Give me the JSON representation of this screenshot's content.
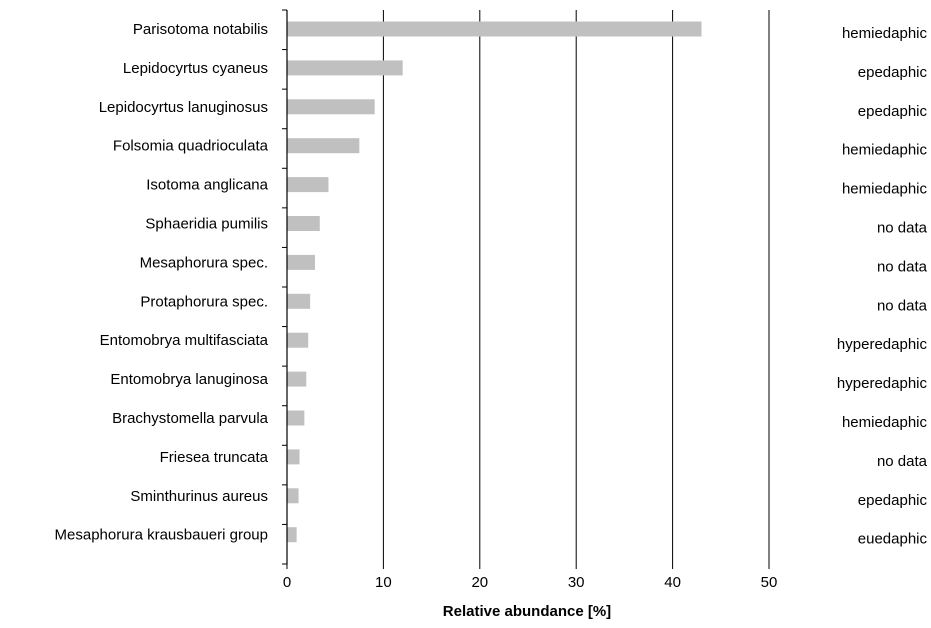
{
  "chart_data": {
    "type": "bar",
    "orientation": "horizontal",
    "categories": [
      "Parisotoma notabilis",
      "Lepidocyrtus cyaneus",
      "Lepidocyrtus lanuginosus",
      "Folsomia quadrioculata",
      "Isotoma anglicana",
      "Sphaeridia pumilis",
      "Mesaphorura spec.",
      "Protaphorura spec.",
      "Entomobrya multifasciata",
      "Entomobrya lanuginosa",
      "Brachystomella parvula",
      "Friesea truncata",
      "Sminthurinus aureus",
      "Mesaphorura krausbaueri group"
    ],
    "values": [
      43,
      12,
      9.1,
      7.5,
      4.3,
      3.4,
      2.9,
      2.4,
      2.2,
      2.0,
      1.8,
      1.3,
      1.2,
      1.0
    ],
    "life_forms": [
      "hemiedaphic",
      "epedaphic",
      "epedaphic",
      "hemiedaphic",
      "hemiedaphic",
      "no data",
      "no data",
      "no data",
      "hyperedaphic",
      "hyperedaphic",
      "hemiedaphic",
      "no data",
      "epedaphic",
      "euedaphic"
    ],
    "xlabel": "Relative abundance [%]",
    "ylabel": "",
    "xlim": [
      0,
      50
    ],
    "xticks": [
      0,
      10,
      20,
      30,
      40,
      50
    ],
    "grid": "vertical",
    "colors": {
      "bar": "#c0c0c0",
      "grid": "#000000",
      "text": "#000000"
    }
  }
}
